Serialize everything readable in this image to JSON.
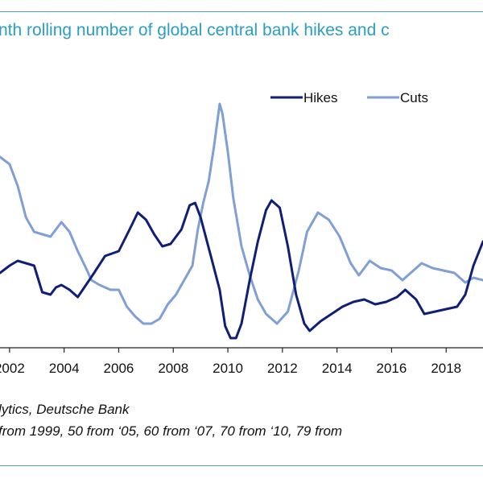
{
  "header": {
    "title": "nth rolling number of global central bank hikes and c"
  },
  "footer": {
    "source": "lytics, Deutsche Bank",
    "note": "from 1999, 50 from ‘05, 60 from ‘07, 70 from ‘10, 79 from"
  },
  "colors": {
    "hikes": "#0f1f78",
    "cuts": "#7f9fd6",
    "accent": "#2a9ec4"
  },
  "chart_data": {
    "type": "line",
    "title": "",
    "xlabel": "",
    "ylabel": "",
    "xlim": [
      2001.65,
      2019.35
    ],
    "ylim": [
      0,
      100
    ],
    "x_ticks": [
      "2002",
      "2004",
      "2006",
      "2008",
      "2010",
      "2012",
      "2014",
      "2016",
      "2018"
    ],
    "legend": {
      "position": "top-right",
      "items": [
        "Hikes",
        "Cuts"
      ]
    },
    "grid": false,
    "series": [
      {
        "name": "Hikes",
        "color": "#0f1f78",
        "points": [
          [
            2001.65,
            27
          ],
          [
            2002.0,
            30
          ],
          [
            2002.3,
            32
          ],
          [
            2002.6,
            31
          ],
          [
            2002.9,
            30
          ],
          [
            2003.2,
            19
          ],
          [
            2003.5,
            18
          ],
          [
            2003.7,
            21
          ],
          [
            2003.9,
            22
          ],
          [
            2004.2,
            20
          ],
          [
            2004.5,
            17
          ],
          [
            2004.8,
            22
          ],
          [
            2005.1,
            27
          ],
          [
            2005.5,
            34
          ],
          [
            2006.0,
            36
          ],
          [
            2006.4,
            45
          ],
          [
            2006.7,
            52
          ],
          [
            2007.0,
            49
          ],
          [
            2007.3,
            43
          ],
          [
            2007.6,
            38
          ],
          [
            2007.9,
            39
          ],
          [
            2008.3,
            45
          ],
          [
            2008.6,
            55
          ],
          [
            2008.8,
            56
          ],
          [
            2009.0,
            50
          ],
          [
            2009.4,
            33
          ],
          [
            2009.7,
            20
          ],
          [
            2009.9,
            5
          ],
          [
            2010.1,
            0
          ],
          [
            2010.3,
            0
          ],
          [
            2010.5,
            6
          ],
          [
            2010.8,
            24
          ],
          [
            2011.1,
            40
          ],
          [
            2011.4,
            53
          ],
          [
            2011.6,
            57
          ],
          [
            2011.9,
            54
          ],
          [
            2012.2,
            38
          ],
          [
            2012.5,
            18
          ],
          [
            2012.8,
            6
          ],
          [
            2013.0,
            3
          ],
          [
            2013.4,
            7
          ],
          [
            2013.8,
            10
          ],
          [
            2014.2,
            13
          ],
          [
            2014.6,
            15
          ],
          [
            2015.0,
            16
          ],
          [
            2015.4,
            14
          ],
          [
            2015.8,
            15
          ],
          [
            2016.2,
            17
          ],
          [
            2016.5,
            20
          ],
          [
            2016.9,
            16
          ],
          [
            2017.2,
            10
          ],
          [
            2017.6,
            11
          ],
          [
            2018.0,
            12
          ],
          [
            2018.4,
            13
          ],
          [
            2018.7,
            18
          ],
          [
            2019.0,
            30
          ],
          [
            2019.35,
            40
          ]
        ]
      },
      {
        "name": "Cuts",
        "color": "#7f9fd6",
        "points": [
          [
            2001.65,
            75
          ],
          [
            2002.0,
            72
          ],
          [
            2002.3,
            63
          ],
          [
            2002.6,
            50
          ],
          [
            2002.9,
            44
          ],
          [
            2003.2,
            43
          ],
          [
            2003.5,
            42
          ],
          [
            2003.9,
            48
          ],
          [
            2004.2,
            44
          ],
          [
            2004.5,
            36
          ],
          [
            2004.8,
            29
          ],
          [
            2005.0,
            24
          ],
          [
            2005.3,
            22
          ],
          [
            2005.7,
            20
          ],
          [
            2006.0,
            20
          ],
          [
            2006.3,
            13
          ],
          [
            2006.6,
            9
          ],
          [
            2006.9,
            6
          ],
          [
            2007.2,
            6
          ],
          [
            2007.5,
            8
          ],
          [
            2007.8,
            14
          ],
          [
            2008.1,
            18
          ],
          [
            2008.4,
            24
          ],
          [
            2008.7,
            30
          ],
          [
            2008.9,
            45
          ],
          [
            2009.1,
            56
          ],
          [
            2009.3,
            65
          ],
          [
            2009.5,
            80
          ],
          [
            2009.7,
            97
          ],
          [
            2009.8,
            93
          ],
          [
            2010.0,
            77
          ],
          [
            2010.2,
            58
          ],
          [
            2010.5,
            38
          ],
          [
            2010.8,
            26
          ],
          [
            2011.1,
            16
          ],
          [
            2011.4,
            10
          ],
          [
            2011.8,
            6
          ],
          [
            2012.2,
            11
          ],
          [
            2012.6,
            28
          ],
          [
            2012.9,
            44
          ],
          [
            2013.3,
            52
          ],
          [
            2013.7,
            49
          ],
          [
            2014.1,
            42
          ],
          [
            2014.5,
            31
          ],
          [
            2014.8,
            26
          ],
          [
            2015.2,
            32
          ],
          [
            2015.6,
            29
          ],
          [
            2016.0,
            28
          ],
          [
            2016.4,
            24
          ],
          [
            2016.8,
            28
          ],
          [
            2017.1,
            31
          ],
          [
            2017.5,
            29
          ],
          [
            2017.9,
            28
          ],
          [
            2018.3,
            27
          ],
          [
            2018.7,
            23
          ],
          [
            2019.0,
            25
          ],
          [
            2019.35,
            24
          ]
        ]
      }
    ]
  }
}
